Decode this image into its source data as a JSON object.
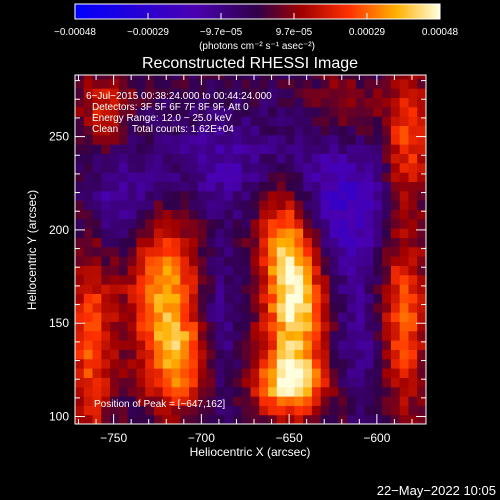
{
  "chart_data": {
    "type": "heatmap",
    "title": "Reconstructed RHESSI Image",
    "xlabel": "Heliocentric X (arcsec)",
    "ylabel": "Heliocentric Y (arcsec)",
    "xlim": [
      -772,
      -572
    ],
    "ylim": [
      96,
      283
    ],
    "x_ticks": [
      -750,
      -700,
      -650,
      -600
    ],
    "x_tick_labels": [
      "−750",
      "−700",
      "−650",
      "−600"
    ],
    "y_ticks": [
      100,
      150,
      200,
      250
    ],
    "y_tick_labels": [
      "100",
      "150",
      "200",
      "250"
    ],
    "colorbar": {
      "min": -0.00048,
      "max": 0.00048,
      "tick_labels": [
        "−0.00048",
        "−0.00029",
        "−9.7e−05",
        "9.7e−05",
        "0.00029",
        "0.00048"
      ],
      "unit_label": "(photons cm⁻² s⁻¹ asec⁻²)"
    },
    "annotations": [
      "6−Jul−2015 00:38:24.000 to 00:44:24.000",
      "Detectors: 3F 5F 6F 7F 8F 9F, Att 0",
      "Energy Range: 12.0 − 25.0 keV",
      "Clean     Total counts: 1.62E+04"
    ],
    "peak_label": "Position of Peak = [−647,162]",
    "peak": [
      -647,
      162
    ],
    "sources": [
      {
        "x": -647,
        "y": 162,
        "amp": 1.0,
        "sx": 12,
        "sy": 25
      },
      {
        "x": -650,
        "y": 118,
        "amp": 0.85,
        "sx": 14,
        "sy": 12
      },
      {
        "x": -652,
        "y": 200,
        "amp": 0.55,
        "sx": 11,
        "sy": 18
      },
      {
        "x": -722,
        "y": 172,
        "amp": 0.75,
        "sx": 14,
        "sy": 28
      },
      {
        "x": -712,
        "y": 128,
        "amp": 0.6,
        "sx": 13,
        "sy": 18
      },
      {
        "x": -763,
        "y": 140,
        "amp": 0.55,
        "sx": 9,
        "sy": 40
      },
      {
        "x": -755,
        "y": 265,
        "amp": 0.4,
        "sx": 10,
        "sy": 15
      },
      {
        "x": -583,
        "y": 250,
        "amp": 0.55,
        "sx": 9,
        "sy": 25
      },
      {
        "x": -585,
        "y": 155,
        "amp": 0.6,
        "sx": 9,
        "sy": 35
      },
      {
        "x": -620,
        "y": 265,
        "amp": 0.3,
        "sx": 14,
        "sy": 14
      }
    ],
    "negative_regions": [
      {
        "x": -620,
        "y": 215,
        "amp": -0.45,
        "sx": 22,
        "sy": 30
      },
      {
        "x": -745,
        "y": 215,
        "amp": -0.35,
        "sx": 16,
        "sy": 22
      },
      {
        "x": -690,
        "y": 235,
        "amp": -0.3,
        "sx": 22,
        "sy": 20
      },
      {
        "x": -690,
        "y": 145,
        "amp": -0.3,
        "sx": 8,
        "sy": 30
      },
      {
        "x": -610,
        "y": 140,
        "amp": -0.25,
        "sx": 10,
        "sy": 22
      }
    ]
  },
  "timestamp": "22−May−2022 10:05"
}
